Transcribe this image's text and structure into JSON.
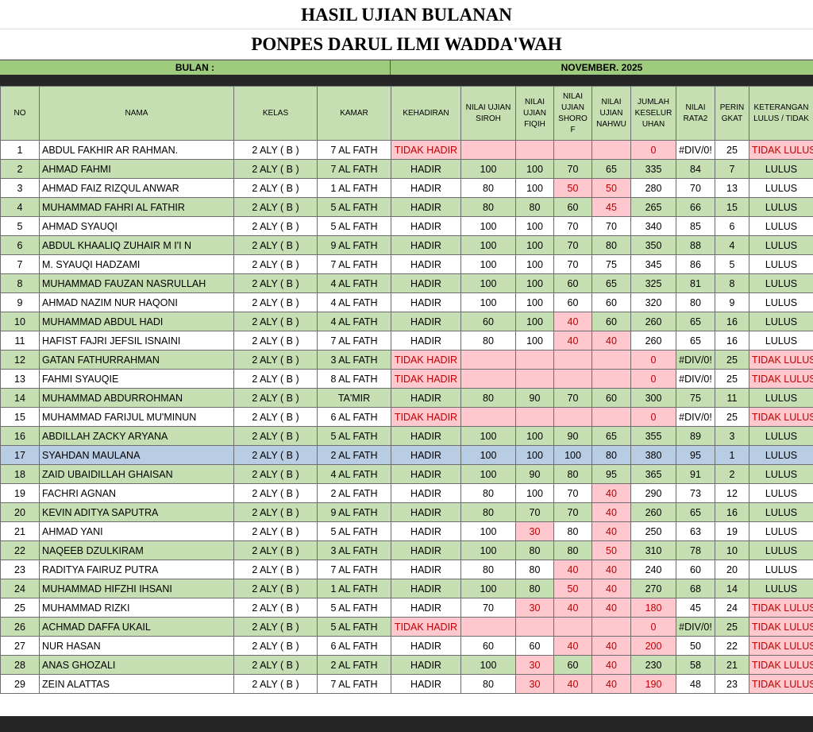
{
  "header": {
    "title": "HASIL UJIAN BULANAN",
    "subtitle": "PONPES DARUL ILMI WADDA'WAH",
    "month_label": "BULAN :",
    "month": "NOVEMBER. 2025"
  },
  "table": {
    "columns": [
      "NO",
      "NAMA",
      "KELAS",
      "KAMAR",
      "KEHADIRAN",
      "NILAI UJIAN SIROH",
      "NILAI UJIAN FIQIH",
      "NILAI UJIAN SHOROF",
      "NILAI UJIAN NAHWU",
      "JUMLAH KESELURUHAN",
      "NILAI RATA2",
      "PERINGKAT",
      "KETERANGAN LULUS / TIDAK"
    ],
    "rows": [
      [
        1,
        "ABDUL FAKHIR AR RAHMAN.",
        "2 ALY ( B )",
        "7 AL FATH",
        "TIDAK HADIR",
        null,
        null,
        null,
        null,
        0,
        "#DIV/0!",
        25,
        "TIDAK LULUS"
      ],
      [
        2,
        "AHMAD FAHMI",
        "2 ALY ( B )",
        "7 AL FATH",
        "HADIR",
        100,
        100,
        70,
        65,
        335,
        84,
        7,
        "LULUS"
      ],
      [
        3,
        "AHMAD FAIZ RIZQUL ANWAR",
        "2 ALY ( B )",
        "1 AL FATH",
        "HADIR",
        80,
        100,
        50,
        50,
        280,
        70,
        13,
        "LULUS"
      ],
      [
        4,
        "MUHAMMAD FAHRI AL FATHIR",
        "2 ALY ( B )",
        "5 AL FATH",
        "HADIR",
        80,
        80,
        60,
        45,
        265,
        66,
        15,
        "LULUS"
      ],
      [
        5,
        "AHMAD SYAUQI",
        "2 ALY ( B )",
        "5 AL FATH",
        "HADIR",
        100,
        100,
        70,
        70,
        340,
        85,
        6,
        "LULUS"
      ],
      [
        6,
        "ABDUL KHAALIQ ZUHAIR M I'I N",
        "2 ALY ( B )",
        "9 AL FATH",
        "HADIR",
        100,
        100,
        70,
        80,
        350,
        88,
        4,
        "LULUS"
      ],
      [
        7,
        "M. SYAUQI HADZAMI",
        "2 ALY ( B )",
        "7 AL FATH",
        "HADIR",
        100,
        100,
        70,
        75,
        345,
        86,
        5,
        "LULUS"
      ],
      [
        8,
        "MUHAMMAD FAUZAN NASRULLAH",
        "2 ALY ( B )",
        "4 AL FATH",
        "HADIR",
        100,
        100,
        60,
        65,
        325,
        81,
        8,
        "LULUS"
      ],
      [
        9,
        "AHMAD NAZIM NUR HAQONI",
        "2 ALY ( B )",
        "4 AL FATH",
        "HADIR",
        100,
        100,
        60,
        60,
        320,
        80,
        9,
        "LULUS"
      ],
      [
        10,
        "MUHAMMAD ABDUL HADI",
        "2 ALY ( B )",
        "4 AL FATH",
        "HADIR",
        60,
        100,
        40,
        60,
        260,
        65,
        16,
        "LULUS"
      ],
      [
        11,
        "HAFIST FAJRI JEFSIL ISNAINI",
        "2 ALY ( B )",
        "7 AL FATH",
        "HADIR",
        80,
        100,
        40,
        40,
        260,
        65,
        16,
        "LULUS"
      ],
      [
        12,
        "GATAN FATHURRAHMAN",
        "2 ALY ( B )",
        "3 AL FATH",
        "TIDAK HADIR",
        null,
        null,
        null,
        null,
        0,
        "#DIV/0!",
        25,
        "TIDAK LULUS"
      ],
      [
        13,
        "FAHMI SYAUQIE",
        "2 ALY ( B )",
        "8 AL FATH",
        "TIDAK HADIR",
        null,
        null,
        null,
        null,
        0,
        "#DIV/0!",
        25,
        "TIDAK LULUS"
      ],
      [
        14,
        "MUHAMMAD ABDURROHMAN",
        "2 ALY ( B )",
        "TA'MIR",
        "HADIR",
        80,
        90,
        70,
        60,
        300,
        75,
        11,
        "LULUS"
      ],
      [
        15,
        "MUHAMMAD FARIJUL MU'MINUN",
        "2 ALY ( B )",
        "6 AL FATH",
        "TIDAK HADIR",
        null,
        null,
        null,
        null,
        0,
        "#DIV/0!",
        25,
        "TIDAK LULUS"
      ],
      [
        16,
        "ABDILLAH ZACKY ARYANA",
        "2 ALY ( B )",
        "5 AL FATH",
        "HADIR",
        100,
        100,
        90,
        65,
        355,
        89,
        3,
        "LULUS"
      ],
      [
        17,
        "SYAHDAN MAULANA",
        "2 ALY ( B )",
        "2 AL FATH",
        "HADIR",
        100,
        100,
        100,
        80,
        380,
        95,
        1,
        "LULUS"
      ],
      [
        18,
        "ZAID UBAIDILLAH GHAISAN",
        "2 ALY ( B )",
        "4 AL FATH",
        "HADIR",
        100,
        90,
        80,
        95,
        365,
        91,
        2,
        "LULUS"
      ],
      [
        19,
        "FACHRI AGNAN",
        "2 ALY ( B )",
        "2 AL FATH",
        "HADIR",
        80,
        100,
        70,
        40,
        290,
        73,
        12,
        "LULUS"
      ],
      [
        20,
        "KEVIN ADITYA SAPUTRA",
        "2 ALY ( B )",
        "9 AL FATH",
        "HADIR",
        80,
        70,
        70,
        40,
        260,
        65,
        16,
        "LULUS"
      ],
      [
        21,
        "AHMAD YANI",
        "2 ALY ( B )",
        "5 AL FATH",
        "HADIR",
        100,
        30,
        80,
        40,
        250,
        63,
        19,
        "LULUS"
      ],
      [
        22,
        "NAQEEB DZULKIRAM",
        "2 ALY ( B )",
        "3 AL FATH",
        "HADIR",
        100,
        80,
        80,
        50,
        310,
        78,
        10,
        "LULUS"
      ],
      [
        23,
        "RADITYA FAIRUZ PUTRA",
        "2 ALY ( B )",
        "7 AL FATH",
        "HADIR",
        80,
        80,
        40,
        40,
        240,
        60,
        20,
        "LULUS"
      ],
      [
        24,
        "MUHAMMAD HIFZHI IHSANI",
        "2 ALY ( B )",
        "1 AL FATH",
        "HADIR",
        100,
        80,
        50,
        40,
        270,
        68,
        14,
        "LULUS"
      ],
      [
        25,
        "MUHAMMAD RIZKI",
        "2 ALY ( B )",
        "5 AL FATH",
        "HADIR",
        70,
        30,
        40,
        40,
        180,
        45,
        24,
        "TIDAK LULUS"
      ],
      [
        26,
        "ACHMAD DAFFA UKAIL",
        "2 ALY ( B )",
        "5 AL FATH",
        "TIDAK HADIR",
        null,
        null,
        null,
        null,
        0,
        "#DIV/0!",
        25,
        "TIDAK LULUS"
      ],
      [
        27,
        "NUR HASAN",
        "2 ALY ( B )",
        "6 AL FATH",
        "HADIR",
        60,
        60,
        40,
        40,
        200,
        50,
        22,
        "TIDAK LULUS"
      ],
      [
        28,
        "ANAS GHOZALI",
        "2 ALY ( B )",
        "2 AL FATH",
        "HADIR",
        100,
        30,
        60,
        40,
        230,
        58,
        21,
        "TIDAK LULUS"
      ],
      [
        29,
        "ZEIN ALATTAS",
        "2 ALY ( B )",
        "7 AL FATH",
        "HADIR",
        80,
        30,
        40,
        40,
        190,
        48,
        23,
        "TIDAK LULUS"
      ]
    ],
    "row_fills": [
      "#ffffff",
      "#c6dfb2",
      "#ffffff",
      "#c6dfb2",
      "#ffffff",
      "#c6dfb2",
      "#ffffff",
      "#c6dfb2",
      "#ffffff",
      "#c6dfb2",
      "#ffffff",
      "#c6dfb2",
      "#ffffff",
      "#c6dfb2",
      "#ffffff",
      "#c6dfb2",
      "#b8cce4",
      "#c6dfb2",
      "#ffffff",
      "#c6dfb2",
      "#ffffff",
      "#c6dfb2",
      "#ffffff",
      "#c6dfb2",
      "#ffffff",
      "#c6dfb2",
      "#ffffff",
      "#c6dfb2",
      "#ffffff"
    ],
    "highlight_fill": "#ffc7ce",
    "highlight_text": "#c00000",
    "highlights": [
      [
        4,
        5,
        6,
        7,
        8,
        9,
        12
      ],
      [],
      [
        7,
        8
      ],
      [
        8
      ],
      [],
      [],
      [],
      [],
      [],
      [
        7
      ],
      [
        7,
        8
      ],
      [
        4,
        5,
        6,
        7,
        8,
        9,
        12
      ],
      [
        4,
        5,
        6,
        7,
        8,
        9,
        12
      ],
      [],
      [
        4,
        5,
        6,
        7,
        8,
        9,
        12
      ],
      [],
      [],
      [],
      [
        8
      ],
      [
        8
      ],
      [
        6,
        8
      ],
      [
        8
      ],
      [
        7,
        8
      ],
      [
        7,
        8
      ],
      [
        6,
        7,
        8,
        9,
        12
      ],
      [
        4,
        5,
        6,
        7,
        8,
        9,
        12
      ],
      [
        7,
        8,
        9,
        12
      ],
      [
        6,
        8,
        12
      ],
      [
        6,
        7,
        8,
        9,
        12
      ]
    ]
  }
}
